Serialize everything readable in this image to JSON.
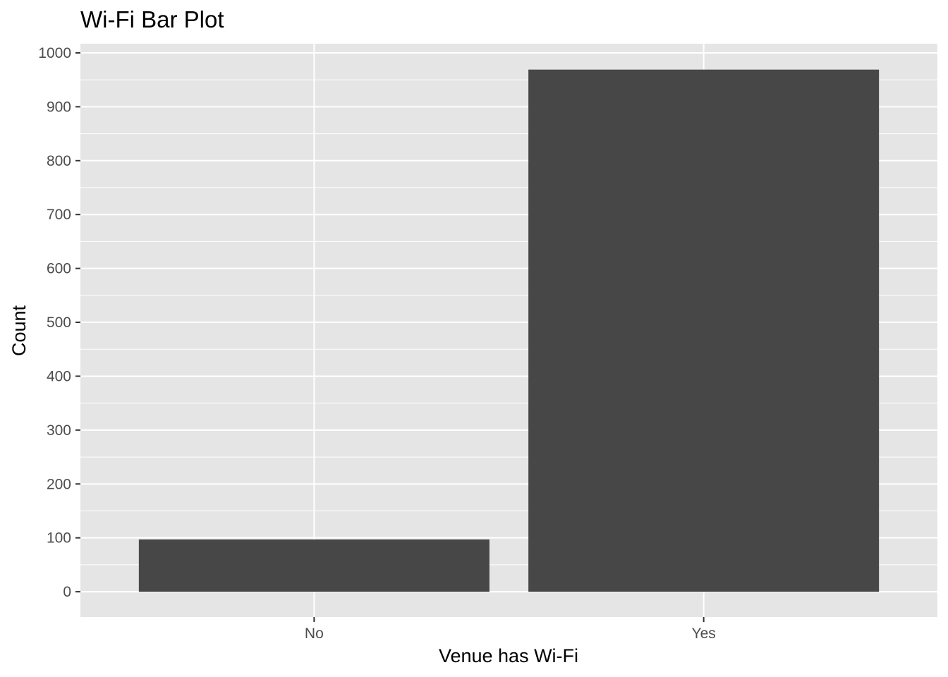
{
  "chart_data": {
    "type": "bar",
    "title": "Wi-Fi Bar Plot",
    "xlabel": "Venue has Wi-Fi",
    "ylabel": "Count",
    "categories": [
      "No",
      "Yes"
    ],
    "values": [
      97,
      969
    ],
    "ylim": [
      -47,
      1017
    ],
    "yticks": [
      0,
      100,
      200,
      300,
      400,
      500,
      600,
      700,
      800,
      900,
      1000
    ],
    "grid": true,
    "legend": "none",
    "colors": {
      "bar": "#474747",
      "panel": "#e5e5e5",
      "grid": "#ffffff",
      "tick_text": "#4d4d4d",
      "tick_mark": "#333333"
    }
  }
}
